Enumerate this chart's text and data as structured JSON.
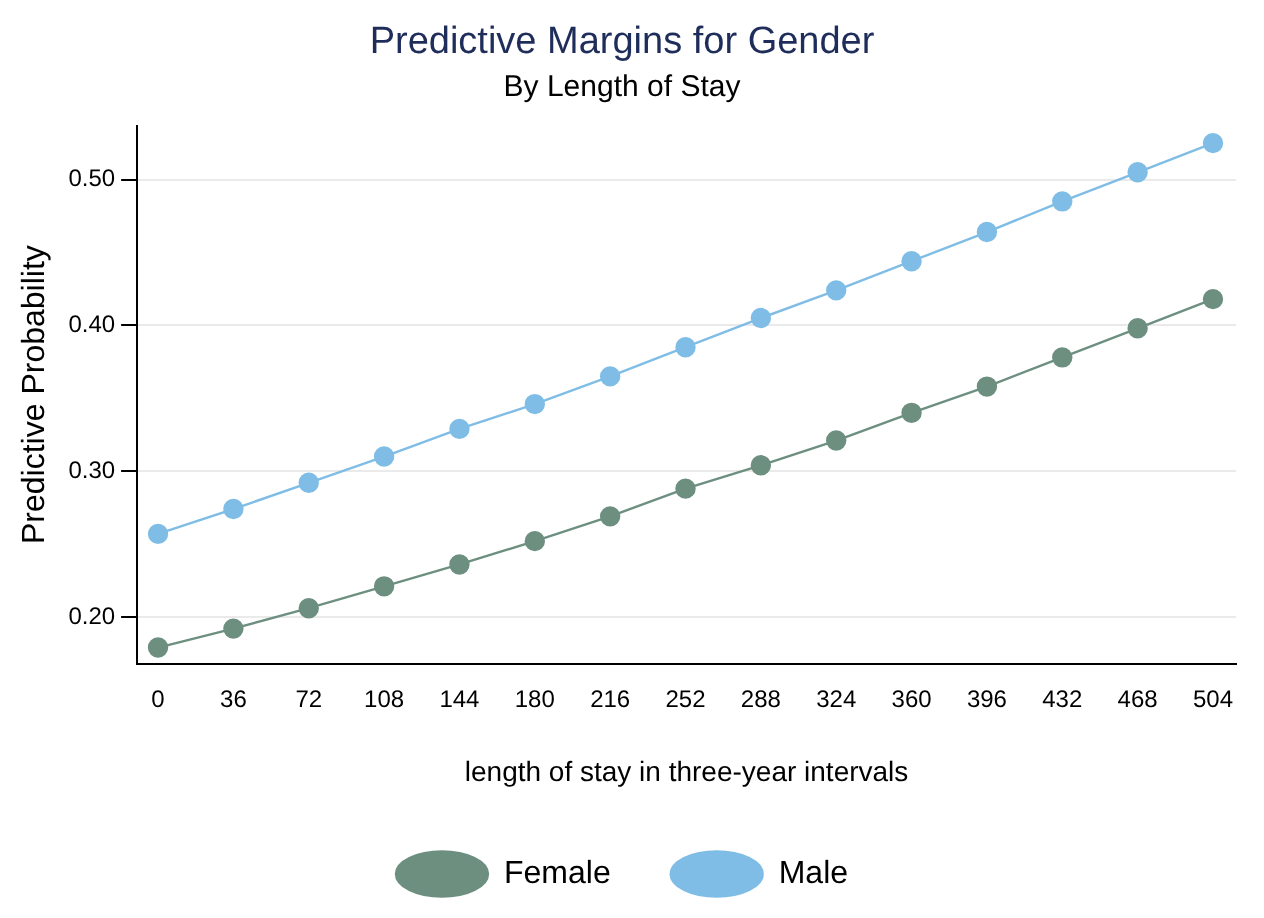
{
  "chart_data": {
    "type": "line",
    "title": "Predictive Margins for Gender",
    "subtitle": "By Length of Stay",
    "xlabel": "length of stay in three-year intervals",
    "ylabel": "Predictive Probability",
    "x": [
      0,
      36,
      72,
      108,
      144,
      180,
      216,
      252,
      288,
      324,
      360,
      396,
      432,
      468,
      504
    ],
    "series": [
      {
        "name": "Female",
        "color": "#6d8f80",
        "values": [
          0.179,
          0.192,
          0.206,
          0.221,
          0.236,
          0.252,
          0.269,
          0.288,
          0.304,
          0.321,
          0.34,
          0.358,
          0.378,
          0.398,
          0.418
        ]
      },
      {
        "name": "Male",
        "color": "#7fbde6",
        "values": [
          0.257,
          0.274,
          0.292,
          0.31,
          0.329,
          0.346,
          0.365,
          0.385,
          0.405,
          0.424,
          0.444,
          0.464,
          0.485,
          0.505,
          0.525
        ]
      }
    ],
    "xlim": [
      -10,
      515
    ],
    "xticks": [
      0,
      36,
      72,
      108,
      144,
      180,
      216,
      252,
      288,
      324,
      360,
      396,
      432,
      468,
      504
    ],
    "ylim": [
      0.168,
      0.537
    ],
    "yticks": [
      {
        "value": 0.2,
        "label": "0.20"
      },
      {
        "value": 0.3,
        "label": "0.30"
      },
      {
        "value": 0.4,
        "label": "0.40"
      },
      {
        "value": 0.5,
        "label": "0.50"
      }
    ],
    "grid": "y",
    "legend": "bottom",
    "marker": "circle",
    "line_style": "solid"
  }
}
